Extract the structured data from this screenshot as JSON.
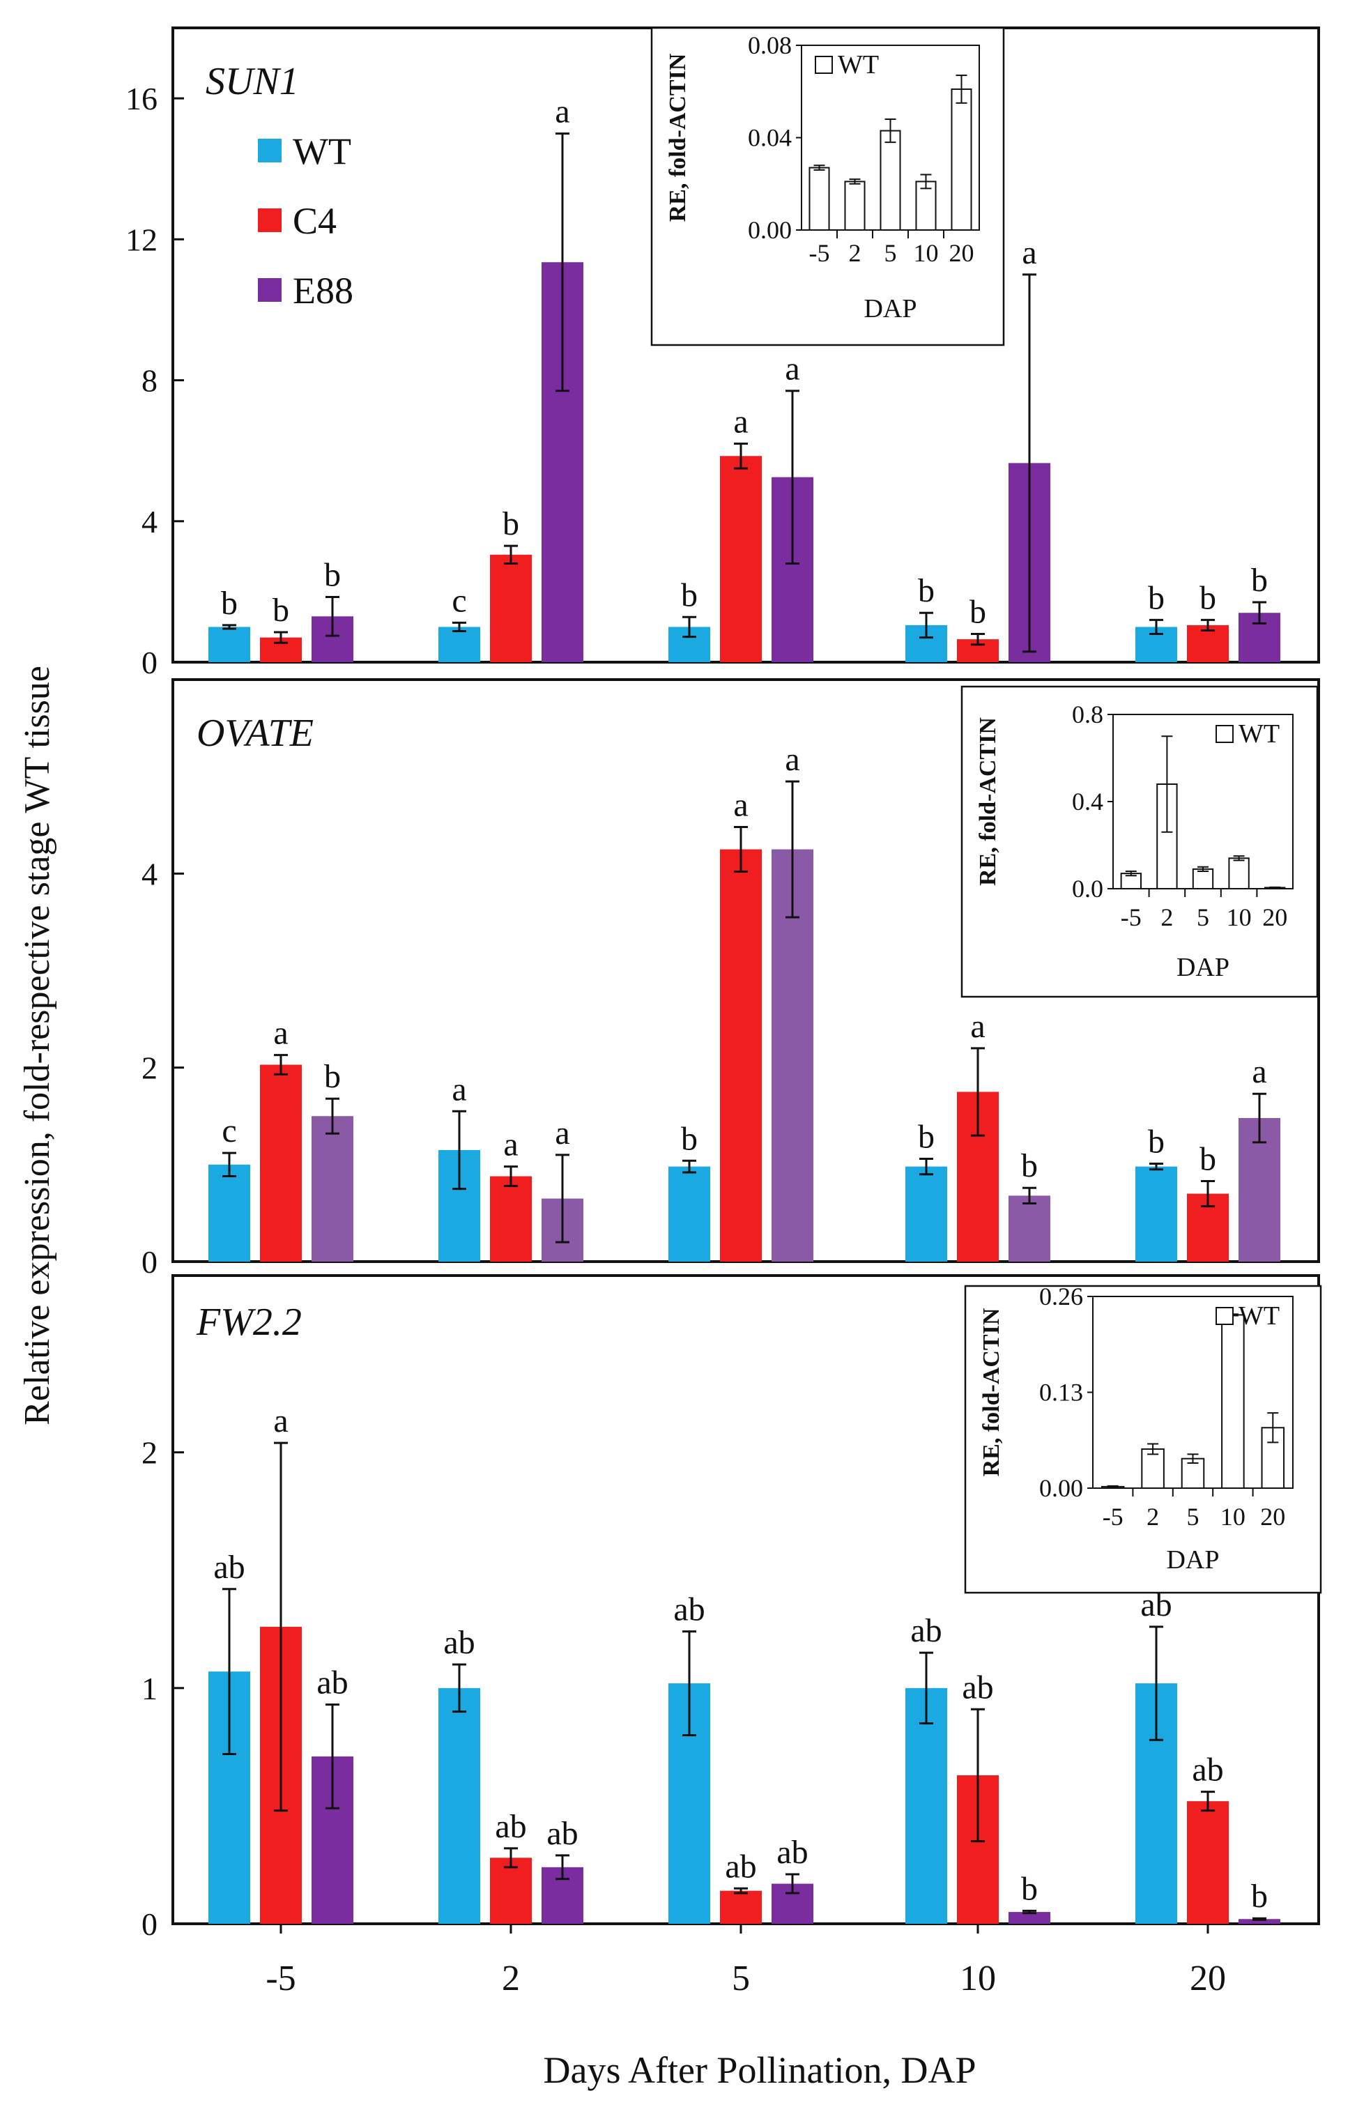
{
  "figure": {
    "y_axis_label": "Relative expression, fold-respective stage WT tissue",
    "x_axis_label": "Days After Pollination, DAP",
    "categories": [
      "-5",
      "2",
      "5",
      "10",
      "20"
    ]
  },
  "legend": [
    {
      "name": "WT",
      "color": "#1aa9e0"
    },
    {
      "name": "C4",
      "color": "#f01e1e"
    },
    {
      "name": "E88",
      "color": "#7a2d9e"
    }
  ],
  "chart_data": [
    {
      "type": "bar",
      "title": "SUN1",
      "categories": [
        "-5",
        "2",
        "5",
        "10",
        "20"
      ],
      "ylim": [
        0,
        18
      ],
      "yticks": [
        "0",
        "4",
        "8",
        "12",
        "16"
      ],
      "series": [
        {
          "name": "WT",
          "color": "#1aa9e0",
          "values": [
            1.0,
            1.0,
            1.0,
            1.05,
            1.0
          ],
          "errors": [
            0.05,
            0.12,
            0.28,
            0.35,
            0.2
          ],
          "letters": [
            "b",
            "c",
            "b",
            "b",
            "b"
          ]
        },
        {
          "name": "C4",
          "color": "#f01e1e",
          "values": [
            0.7,
            3.05,
            5.85,
            0.65,
            1.05
          ],
          "errors": [
            0.15,
            0.25,
            0.35,
            0.15,
            0.15
          ],
          "letters": [
            "b",
            "b",
            "a",
            "b",
            "b"
          ]
        },
        {
          "name": "E88",
          "color": "#7a2d9e",
          "values": [
            1.3,
            11.35,
            5.25,
            5.65,
            1.4
          ],
          "errors": [
            0.55,
            3.65,
            2.45,
            5.35,
            0.3
          ],
          "letters": [
            "b",
            "a",
            "a",
            "a",
            "b"
          ]
        }
      ],
      "inset": {
        "type": "bar",
        "series_name": "WT",
        "ylabel": "RE, fold-ACTIN",
        "xlabel": "DAP",
        "categories": [
          "-5",
          "2",
          "5",
          "10",
          "20"
        ],
        "ylim": [
          0,
          0.08
        ],
        "yticks": [
          "0.00",
          "0.04",
          "0.08"
        ],
        "values": [
          0.027,
          0.021,
          0.043,
          0.021,
          0.061
        ],
        "errors": [
          0.001,
          0.001,
          0.005,
          0.003,
          0.006
        ]
      }
    },
    {
      "type": "bar",
      "title": "OVATE",
      "categories": [
        "-5",
        "2",
        "5",
        "10",
        "20"
      ],
      "ylim": [
        0,
        6
      ],
      "yticks": [
        "0",
        "2",
        "4"
      ],
      "series": [
        {
          "name": "WT",
          "color": "#1aa9e0",
          "values": [
            1.0,
            1.15,
            0.98,
            0.98,
            0.98
          ],
          "errors": [
            0.12,
            0.4,
            0.06,
            0.08,
            0.03
          ],
          "letters": [
            "c",
            "a",
            "b",
            "b",
            "b"
          ]
        },
        {
          "name": "C4",
          "color": "#f01e1e",
          "values": [
            2.03,
            0.88,
            4.25,
            1.75,
            0.7
          ],
          "errors": [
            0.1,
            0.1,
            0.23,
            0.45,
            0.13
          ],
          "letters": [
            "a",
            "a",
            "a",
            "a",
            "b"
          ]
        },
        {
          "name": "E88",
          "color": "#8a5aa6",
          "values": [
            1.5,
            0.65,
            4.25,
            0.68,
            1.48
          ],
          "errors": [
            0.18,
            0.45,
            0.7,
            0.08,
            0.25
          ],
          "letters": [
            "b",
            "a",
            "a",
            "b",
            "a"
          ]
        }
      ],
      "inset": {
        "type": "bar",
        "series_name": "WT",
        "ylabel": "RE, fold-ACTIN",
        "xlabel": "DAP",
        "categories": [
          "-5",
          "2",
          "5",
          "10",
          "20"
        ],
        "ylim": [
          0,
          0.8
        ],
        "yticks": [
          "0.0",
          "0.4",
          "0.8"
        ],
        "values": [
          0.07,
          0.48,
          0.09,
          0.14,
          0.005
        ],
        "errors": [
          0.01,
          0.22,
          0.01,
          0.01,
          0.002
        ]
      }
    },
    {
      "type": "bar",
      "title": "FW2.2",
      "categories": [
        "-5",
        "2",
        "5",
        "10",
        "20"
      ],
      "ylim": [
        0,
        2.75
      ],
      "yticks": [
        "0",
        "1",
        "2"
      ],
      "series": [
        {
          "name": "WT",
          "color": "#1aa9e0",
          "values": [
            1.07,
            1.0,
            1.02,
            1.0,
            1.02
          ],
          "errors": [
            0.35,
            0.1,
            0.22,
            0.15,
            0.24
          ],
          "letters": [
            "ab",
            "ab",
            "ab",
            "ab",
            "ab"
          ]
        },
        {
          "name": "C4",
          "color": "#f01e1e",
          "values": [
            1.26,
            0.28,
            0.14,
            0.63,
            0.52
          ],
          "errors": [
            0.78,
            0.04,
            0.01,
            0.28,
            0.04
          ],
          "letters": [
            "a",
            "ab",
            "ab",
            "ab",
            "ab"
          ]
        },
        {
          "name": "E88",
          "color": "#7a2d9e",
          "values": [
            0.71,
            0.24,
            0.17,
            0.05,
            0.02
          ],
          "errors": [
            0.22,
            0.05,
            0.04,
            0.005,
            0.003
          ],
          "letters": [
            "ab",
            "ab",
            "ab",
            "b",
            "b"
          ]
        }
      ],
      "inset": {
        "type": "bar",
        "series_name": "WT",
        "ylabel": "RE, fold-ACTIN",
        "xlabel": "DAP",
        "categories": [
          "-5",
          "2",
          "5",
          "10",
          "20"
        ],
        "ylim": [
          0,
          0.26
        ],
        "yticks": [
          "0.00",
          "0.13",
          "0.26"
        ],
        "values": [
          0.002,
          0.053,
          0.04,
          0.235,
          0.082
        ],
        "errors": [
          0.001,
          0.007,
          0.006,
          0.001,
          0.02
        ]
      }
    }
  ]
}
